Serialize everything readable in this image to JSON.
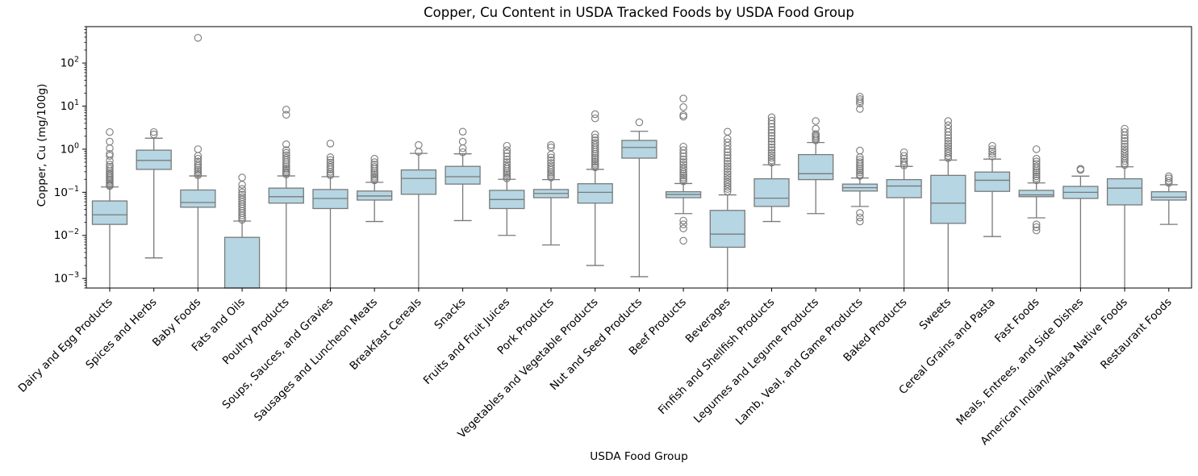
{
  "figure": {
    "background": "#ffffff"
  },
  "chart_data": {
    "type": "boxplot",
    "title": "Copper, Cu Content in USDA Tracked Foods by USDA Food Group",
    "xlabel": "USDA Food Group",
    "ylabel": "Copper, Cu (mg/100g)",
    "yscale": "log",
    "ylim": [
      0.0006,
      700
    ],
    "ytick_exponents": [
      -3,
      -2,
      -1,
      0,
      1,
      2
    ],
    "grid": false,
    "legend": "none",
    "style": {
      "box_fill": "#b5d6e2",
      "line_color": "#7a7a7a",
      "spine_color": "#000000",
      "text_color": "#000000",
      "flier_radius": 4.2
    },
    "categories": [
      "Dairy and Egg Products",
      "Spices and Herbs",
      "Baby Foods",
      "Fats and Oils",
      "Poultry Products",
      "Soups, Sauces, and Gravies",
      "Sausages and Luncheon Meats",
      "Breakfast Cereals",
      "Snacks",
      "Fruits and Fruit Juices",
      "Pork Products",
      "Vegetables and Vegetable Products",
      "Nut and Seed Products",
      "Beef Products",
      "Beverages",
      "Finfish and Shellfish Products",
      "Legumes and Legume Products",
      "Lamb, Veal, and Game Products",
      "Baked Products",
      "Sweets",
      "Cereal Grains and Pasta",
      "Fast Foods",
      "Meals, Entrees, and Side Dishes",
      "American Indian/Alaska Native Foods",
      "Restaurant Foods"
    ],
    "groups": [
      {
        "whislo": 0.0006,
        "q1": 0.018,
        "med": 0.03,
        "q3": 0.063,
        "whishi": 0.133,
        "fliers_high": [
          2.5,
          1.5,
          1.05,
          0.78,
          0.7,
          0.54,
          0.44,
          0.39,
          0.35,
          0.31,
          0.28,
          0.26,
          0.24,
          0.22,
          0.2,
          0.185,
          0.17,
          0.158,
          0.148,
          0.14
        ],
        "fliers_low": []
      },
      {
        "whislo": 0.003,
        "q1": 0.34,
        "med": 0.55,
        "q3": 0.95,
        "whishi": 1.8,
        "fliers_high": [
          2.5,
          2.2
        ],
        "fliers_low": []
      },
      {
        "whislo": 0.0006,
        "q1": 0.045,
        "med": 0.058,
        "q3": 0.113,
        "whishi": 0.24,
        "fliers_high": [
          385,
          1.0,
          0.7,
          0.6,
          0.52,
          0.46,
          0.41,
          0.37,
          0.33,
          0.3,
          0.27,
          0.25
        ],
        "fliers_low": []
      },
      {
        "whislo": 0.0006,
        "q1": 0.0006,
        "med": 0.0006,
        "q3": 0.009,
        "whishi": 0.0215,
        "fliers_high": [
          0.22,
          0.15,
          0.12,
          0.1,
          0.088,
          0.077,
          0.068,
          0.06,
          0.053,
          0.047,
          0.042,
          0.037,
          0.033,
          0.029,
          0.026,
          0.023
        ],
        "fliers_low": []
      },
      {
        "whislo": 0.0006,
        "q1": 0.056,
        "med": 0.079,
        "q3": 0.125,
        "whishi": 0.24,
        "fliers_high": [
          8.3,
          6.3,
          1.3,
          0.95,
          0.82,
          0.72,
          0.63,
          0.56,
          0.5,
          0.45,
          0.4,
          0.36,
          0.33,
          0.3,
          0.28,
          0.26
        ],
        "fliers_low": []
      },
      {
        "whislo": 0.0006,
        "q1": 0.042,
        "med": 0.072,
        "q3": 0.116,
        "whishi": 0.23,
        "fliers_high": [
          1.35,
          0.65,
          0.56,
          0.49,
          0.43,
          0.38,
          0.34,
          0.3,
          0.27,
          0.25
        ],
        "fliers_low": []
      },
      {
        "whislo": 0.021,
        "q1": 0.066,
        "med": 0.082,
        "q3": 0.107,
        "whishi": 0.17,
        "fliers_high": [
          0.6,
          0.5,
          0.44,
          0.39,
          0.35,
          0.31,
          0.28,
          0.255,
          0.23,
          0.21,
          0.19
        ],
        "fliers_low": []
      },
      {
        "whislo": 0.0006,
        "q1": 0.09,
        "med": 0.21,
        "q3": 0.33,
        "whishi": 0.8,
        "fliers_high": [
          1.25,
          0.87
        ],
        "fliers_low": []
      },
      {
        "whislo": 0.022,
        "q1": 0.155,
        "med": 0.23,
        "q3": 0.4,
        "whishi": 0.78,
        "fliers_high": [
          2.55,
          1.5,
          1.05,
          0.85
        ],
        "fliers_low": []
      },
      {
        "whislo": 0.01,
        "q1": 0.042,
        "med": 0.068,
        "q3": 0.111,
        "whishi": 0.2,
        "fliers_high": [
          1.2,
          0.95,
          0.8,
          0.68,
          0.58,
          0.5,
          0.44,
          0.39,
          0.35,
          0.31,
          0.28,
          0.255,
          0.23,
          0.21
        ],
        "fliers_low": []
      },
      {
        "whislo": 0.006,
        "q1": 0.075,
        "med": 0.094,
        "q3": 0.116,
        "whishi": 0.197,
        "fliers_high": [
          1.25,
          1.1,
          0.75,
          0.64,
          0.55,
          0.48,
          0.42,
          0.37,
          0.33,
          0.29,
          0.265,
          0.24,
          0.22
        ],
        "fliers_low": []
      },
      {
        "whislo": 0.002,
        "q1": 0.056,
        "med": 0.1,
        "q3": 0.158,
        "whishi": 0.34,
        "fliers_high": [
          6.5,
          5.2,
          2.2,
          1.85,
          1.6,
          1.4,
          1.25,
          1.1,
          0.98,
          0.87,
          0.78,
          0.7,
          0.63,
          0.57,
          0.51,
          0.46,
          0.42,
          0.38
        ],
        "fliers_low": []
      },
      {
        "whislo": 0.0011,
        "q1": 0.62,
        "med": 1.1,
        "q3": 1.6,
        "whishi": 2.6,
        "fliers_high": [
          4.2
        ],
        "fliers_low": []
      },
      {
        "whislo": 0.032,
        "q1": 0.075,
        "med": 0.089,
        "q3": 0.103,
        "whishi": 0.16,
        "fliers_high": [
          15,
          9.5,
          6.2,
          5.7,
          1.15,
          0.95,
          0.8,
          0.68,
          0.58,
          0.5,
          0.44,
          0.38,
          0.34,
          0.3,
          0.27,
          0.245,
          0.22,
          0.2,
          0.18
        ],
        "fliers_low": [
          0.022,
          0.018,
          0.0145,
          0.0075
        ]
      },
      {
        "whislo": 0.0006,
        "q1": 0.0053,
        "med": 0.0107,
        "q3": 0.038,
        "whishi": 0.087,
        "fliers_high": [
          2.55,
          1.75,
          1.45,
          1.2,
          1.0,
          0.85,
          0.72,
          0.62,
          0.53,
          0.46,
          0.4,
          0.35,
          0.3,
          0.26,
          0.23,
          0.2,
          0.175,
          0.155,
          0.135,
          0.12,
          0.105
        ],
        "fliers_low": []
      },
      {
        "whislo": 0.021,
        "q1": 0.047,
        "med": 0.073,
        "q3": 0.206,
        "whishi": 0.435,
        "fliers_high": [
          5.5,
          4.6,
          3.9,
          3.3,
          2.8,
          2.4,
          2.05,
          1.75,
          1.5,
          1.3,
          1.1,
          0.95,
          0.82,
          0.72,
          0.63,
          0.55,
          0.49
        ],
        "fliers_low": []
      },
      {
        "whislo": 0.032,
        "q1": 0.197,
        "med": 0.27,
        "q3": 0.75,
        "whishi": 1.43,
        "fliers_high": [
          4.5,
          3.0,
          2.25,
          2.05,
          1.9,
          1.75,
          1.6
        ],
        "fliers_low": []
      },
      {
        "whislo": 0.047,
        "q1": 0.107,
        "med": 0.128,
        "q3": 0.155,
        "whishi": 0.215,
        "fliers_high": [
          16.5,
          14.5,
          13,
          11.5,
          8.6,
          0.93,
          0.65,
          0.57,
          0.5,
          0.45,
          0.4,
          0.36,
          0.32,
          0.29,
          0.26,
          0.24
        ],
        "fliers_low": [
          0.033,
          0.026,
          0.021
        ]
      },
      {
        "whislo": 0.0006,
        "q1": 0.075,
        "med": 0.14,
        "q3": 0.197,
        "whishi": 0.4,
        "fliers_high": [
          0.85,
          0.7,
          0.6,
          0.52,
          0.46,
          0.42
        ],
        "fliers_low": []
      },
      {
        "whislo": 0.0006,
        "q1": 0.019,
        "med": 0.056,
        "q3": 0.247,
        "whishi": 0.56,
        "fliers_high": [
          4.5,
          3.6,
          3.0,
          2.5,
          2.1,
          1.8,
          1.55,
          1.35,
          1.18,
          1.03,
          0.9,
          0.8,
          0.7,
          0.62
        ],
        "fliers_low": []
      },
      {
        "whislo": 0.0094,
        "q1": 0.105,
        "med": 0.19,
        "q3": 0.295,
        "whishi": 0.59,
        "fliers_high": [
          1.2,
          1.0,
          0.88,
          0.78,
          0.68
        ],
        "fliers_low": []
      },
      {
        "whislo": 0.0255,
        "q1": 0.079,
        "med": 0.087,
        "q3": 0.111,
        "whishi": 0.165,
        "fliers_high": [
          1.0,
          0.6,
          0.52,
          0.46,
          0.4,
          0.36,
          0.32,
          0.29,
          0.26,
          0.235,
          0.21,
          0.19
        ],
        "fliers_low": [
          0.018,
          0.0155,
          0.013
        ]
      },
      {
        "whislo": 0.0006,
        "q1": 0.072,
        "med": 0.1,
        "q3": 0.137,
        "whishi": 0.237,
        "fliers_high": [
          0.35,
          0.33
        ],
        "fliers_low": []
      },
      {
        "whislo": 0.0006,
        "q1": 0.051,
        "med": 0.125,
        "q3": 0.206,
        "whishi": 0.39,
        "fliers_high": [
          3.0,
          2.5,
          2.1,
          1.8,
          1.55,
          1.33,
          1.15,
          1.0,
          0.88,
          0.78,
          0.68,
          0.6,
          0.53,
          0.47,
          0.43
        ],
        "fliers_low": []
      },
      {
        "whislo": 0.018,
        "q1": 0.066,
        "med": 0.077,
        "q3": 0.103,
        "whishi": 0.15,
        "fliers_high": [
          0.235,
          0.21,
          0.185,
          0.165
        ],
        "fliers_low": []
      }
    ]
  }
}
